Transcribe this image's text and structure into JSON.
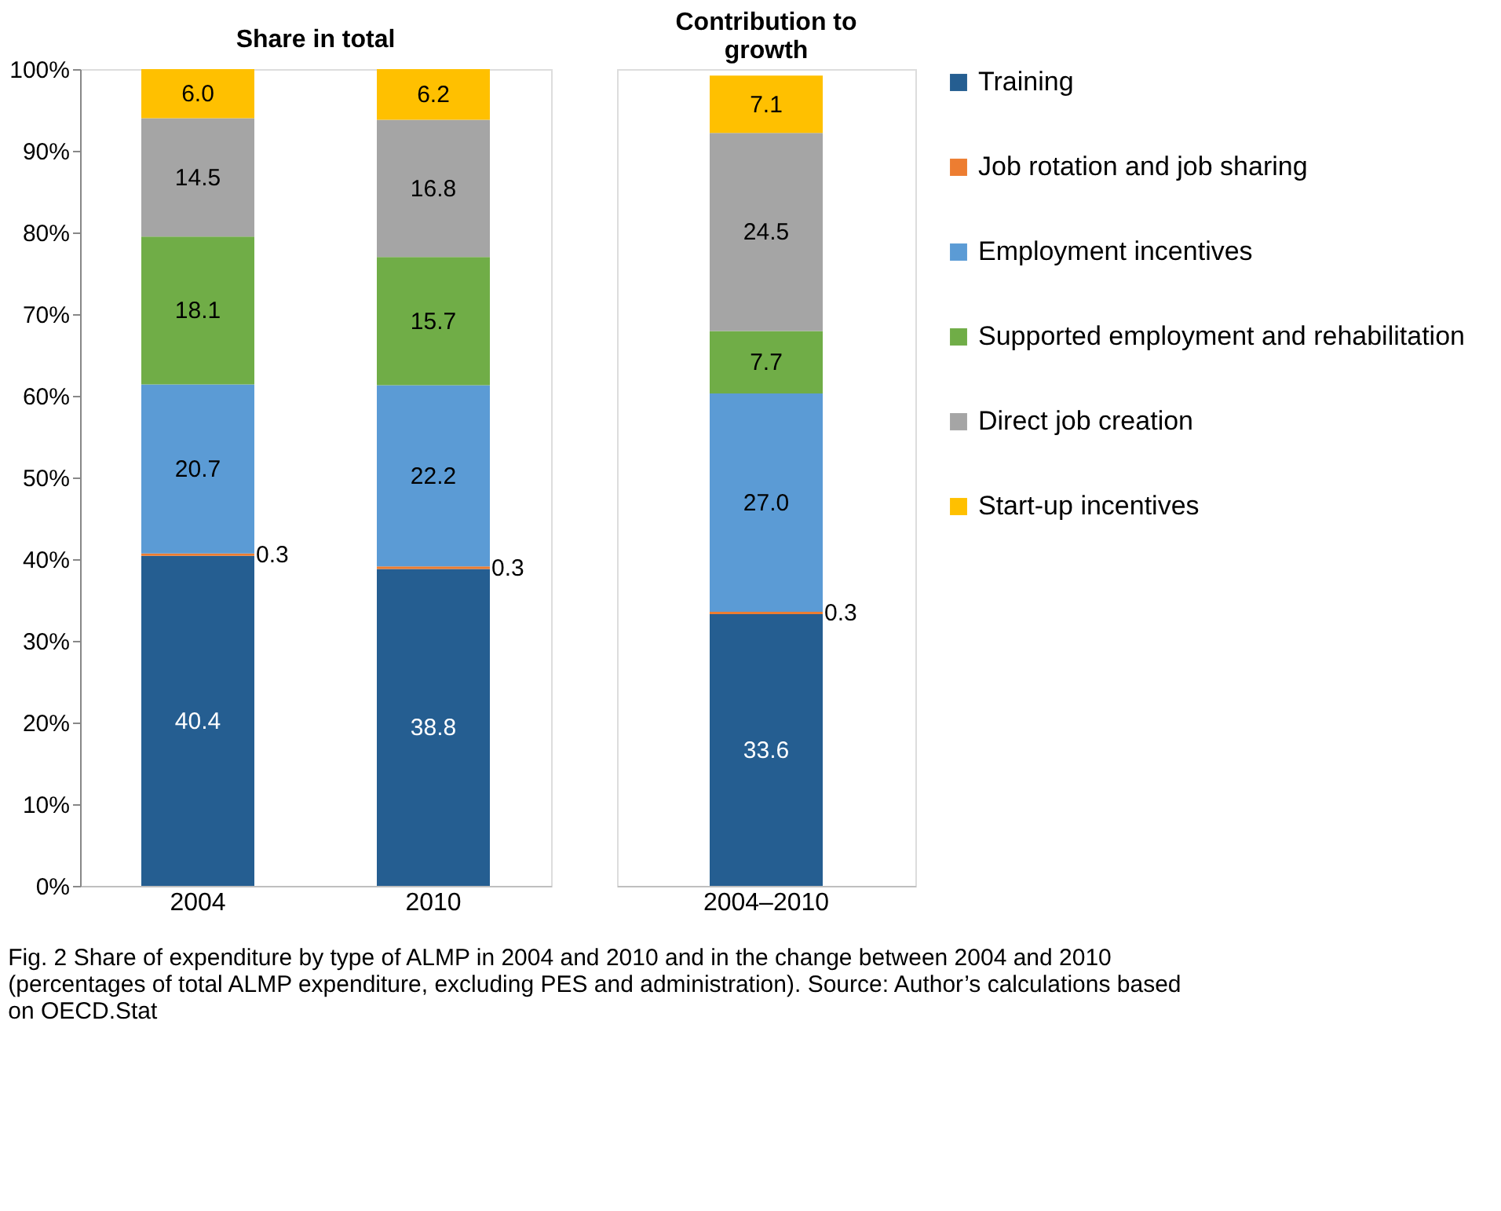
{
  "chart_data": [
    {
      "type": "bar",
      "title": "Share in total",
      "stacked": true,
      "categories": [
        "2004",
        "2010"
      ],
      "series": [
        {
          "name": "Training",
          "color": "#255e91",
          "values": [
            40.4,
            38.8
          ],
          "value_labels": [
            "40.4",
            "38.8"
          ]
        },
        {
          "name": "Job rotation and job sharing",
          "color": "#ed7d31",
          "values": [
            0.3,
            0.3
          ],
          "value_labels": [
            "0.3",
            "0.3"
          ]
        },
        {
          "name": "Employment incentives",
          "color": "#5b9bd5",
          "values": [
            20.7,
            22.2
          ],
          "value_labels": [
            "20.7",
            "22.2"
          ]
        },
        {
          "name": "Supported employment and rehabilitation",
          "color": "#70ad47",
          "values": [
            18.1,
            15.7
          ],
          "value_labels": [
            "18.1",
            "15.7"
          ]
        },
        {
          "name": "Direct job creation",
          "color": "#a5a5a5",
          "values": [
            14.5,
            16.8
          ],
          "value_labels": [
            "14.5",
            "16.8"
          ]
        },
        {
          "name": "Start-up incentives",
          "color": "#ffc000",
          "values": [
            6.0,
            6.2
          ],
          "value_labels": [
            "6.0",
            "6.2"
          ]
        }
      ],
      "ylim": [
        0,
        100
      ],
      "yticks": [
        {
          "value": 0,
          "label": "0%"
        },
        {
          "value": 10,
          "label": "10%"
        },
        {
          "value": 20,
          "label": "20%"
        },
        {
          "value": 30,
          "label": "30%"
        },
        {
          "value": 40,
          "label": "40%"
        },
        {
          "value": 50,
          "label": "50%"
        },
        {
          "value": 60,
          "label": "60%"
        },
        {
          "value": 70,
          "label": "70%"
        },
        {
          "value": 80,
          "label": "80%"
        },
        {
          "value": 90,
          "label": "90%"
        },
        {
          "value": 100,
          "label": "100%"
        }
      ],
      "grid": false,
      "legend": "right",
      "annotations": [
        "Fig. 2 Share of expenditure by type of ALMP in 2004 and 2010 and in the change between 2004 and 2010 (percentages of total ALMP expenditure, excluding PES and administration). Source: Author’s calculations based on OECD.Stat"
      ]
    },
    {
      "type": "bar",
      "title": "Contribution to growth",
      "stacked": true,
      "categories": [
        "2004–2010"
      ],
      "series": [
        {
          "name": "Training",
          "color": "#255e91",
          "values": [
            33.6
          ],
          "value_labels": [
            "33.6"
          ]
        },
        {
          "name": "Job rotation and job sharing",
          "color": "#ed7d31",
          "values": [
            0.3
          ],
          "value_labels": [
            "0.3"
          ]
        },
        {
          "name": "Employment incentives",
          "color": "#5b9bd5",
          "values": [
            27.0
          ],
          "value_labels": [
            "27.0"
          ]
        },
        {
          "name": "Supported employment and rehabilitation",
          "color": "#70ad47",
          "values": [
            7.7
          ],
          "value_labels": [
            "7.7"
          ]
        },
        {
          "name": "Direct job creation",
          "color": "#a5a5a5",
          "values": [
            24.5
          ],
          "value_labels": [
            "24.5"
          ]
        },
        {
          "name": "Start-up incentives",
          "color": "#ffc000",
          "values": [
            7.1
          ],
          "value_labels": [
            "7.1"
          ]
        }
      ],
      "ylim": [
        0,
        101
      ],
      "tick_labels": "x",
      "grid": false,
      "legend": "right"
    }
  ]
}
